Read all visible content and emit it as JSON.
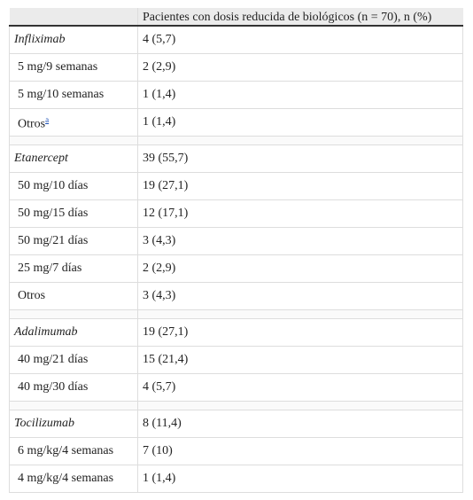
{
  "header": {
    "column": "Pacientes con dosis reducida de biológicos (n = 70), n (%)"
  },
  "groups": [
    {
      "name": "Infliximab",
      "value": "4 (5,7)",
      "rows": [
        {
          "label": "5 mg/9 semanas",
          "value": "2 (2,9)"
        },
        {
          "label": "5 mg/10 semanas",
          "value": "1 (1,4)"
        },
        {
          "label": "Otros",
          "note": "a",
          "value": "1 (1,4)"
        }
      ]
    },
    {
      "name": "Etanercept",
      "value": "39 (55,7)",
      "rows": [
        {
          "label": "50 mg/10 días",
          "value": "19 (27,1)"
        },
        {
          "label": "50 mg/15 días",
          "value": "12 (17,1)"
        },
        {
          "label": "50 mg/21 días",
          "value": "3 (4,3)"
        },
        {
          "label": "25 mg/7 días",
          "value": "2 (2,9)"
        },
        {
          "label": "Otros",
          "value": "3 (4,3)"
        }
      ]
    },
    {
      "name": "Adalimumab",
      "value": "19 (27,1)",
      "rows": [
        {
          "label": "40 mg/21 días",
          "value": "15 (21,4)"
        },
        {
          "label": "40 mg/30 días",
          "value": "4 (5,7)"
        }
      ]
    },
    {
      "name": "Tocilizumab",
      "value": "8 (11,4)",
      "rows": [
        {
          "label": "6 mg/kg/4 semanas",
          "value": "7 (10)"
        },
        {
          "label": "4 mg/kg/4 semanas",
          "value": "1 (1,4)"
        }
      ]
    }
  ]
}
